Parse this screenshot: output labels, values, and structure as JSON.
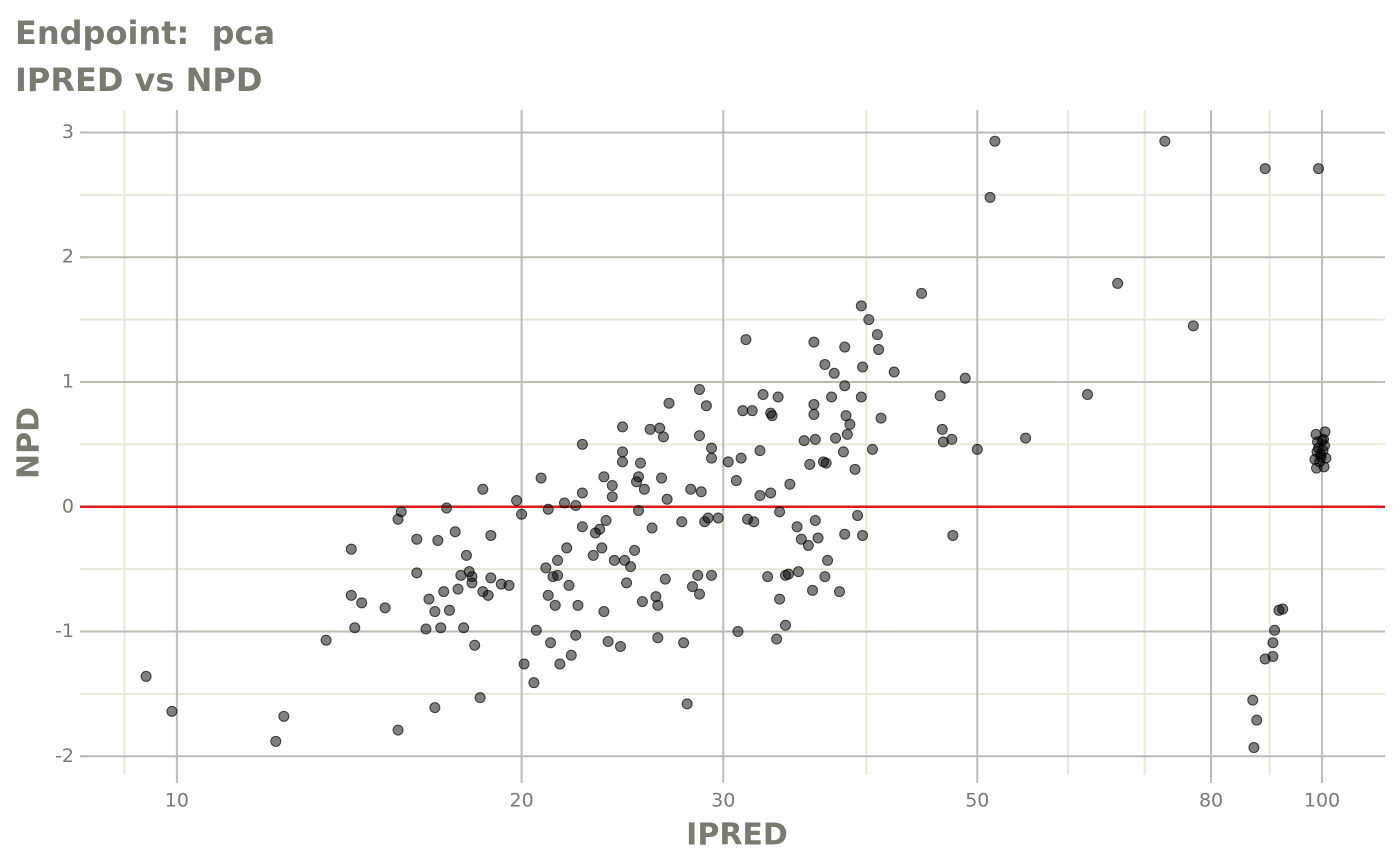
{
  "chart_data": {
    "type": "scatter",
    "title": "Endpoint:  pca",
    "subtitle": "IPRED vs NPD",
    "x_label": "IPRED",
    "y_label": "NPD",
    "x_scale": "log",
    "xlim": [
      8.23,
      113.5
    ],
    "ylim": [
      -2.15,
      3.18
    ],
    "xticks": [
      10,
      20,
      30,
      50,
      80,
      100
    ],
    "x_minor_ticks": [
      9,
      40,
      60,
      70,
      90
    ],
    "yticks": [
      -2,
      -1,
      0,
      1,
      2,
      3
    ],
    "y_minor_ticks": [
      -1.5,
      -0.5,
      0.5,
      1.5,
      2.5
    ],
    "grid": true,
    "major_grid_color": "#bcbcb2",
    "minor_grid_color": "#e6e8d8",
    "hline": 0,
    "hline_color": "#d91a1a",
    "color": "#000000",
    "opacity": 0.5,
    "x": [
      9.4,
      9.9,
      12.2,
      12.4,
      13.5,
      14.2,
      14.2,
      14.3,
      14.5,
      15.2,
      15.6,
      15.6,
      15.7,
      16.2,
      16.2,
      16.5,
      16.6,
      16.8,
      16.8,
      16.9,
      17.0,
      17.1,
      17.2,
      17.3,
      17.5,
      17.6,
      17.7,
      17.8,
      17.9,
      18.0,
      18.1,
      18.1,
      18.2,
      18.4,
      18.5,
      18.5,
      18.7,
      18.8,
      18.8,
      19.2,
      19.5,
      19.8,
      20.0,
      20.1,
      20.5,
      20.6,
      20.8,
      21.0,
      21.1,
      21.1,
      21.2,
      21.3,
      21.4,
      21.5,
      21.5,
      21.6,
      21.8,
      21.9,
      22.0,
      22.1,
      22.3,
      22.3,
      22.4,
      22.6,
      22.6,
      22.6,
      23.1,
      23.2,
      23.4,
      23.5,
      23.6,
      23.6,
      23.7,
      23.8,
      24.0,
      24.0,
      24.1,
      24.4,
      24.5,
      24.5,
      24.5,
      24.6,
      24.7,
      24.9,
      25.1,
      25.2,
      25.3,
      25.3,
      25.4,
      25.5,
      25.6,
      25.9,
      26.0,
      26.2,
      26.3,
      26.3,
      26.4,
      26.5,
      26.6,
      26.7,
      26.8,
      26.9,
      27.6,
      27.7,
      27.9,
      28.1,
      28.2,
      28.5,
      28.6,
      28.6,
      28.6,
      28.7,
      28.9,
      29.0,
      29.1,
      29.3,
      29.3,
      29.3,
      29.7,
      30.3,
      30.8,
      30.9,
      31.1,
      31.2,
      31.4,
      31.5,
      31.8,
      31.9,
      32.3,
      32.3,
      32.5,
      32.8,
      33.0,
      33.0,
      33.1,
      33.4,
      33.5,
      33.6,
      33.6,
      34.0,
      34.0,
      34.2,
      34.3,
      34.8,
      34.9,
      35.1,
      35.3,
      35.6,
      35.7,
      35.9,
      36.0,
      36.0,
      36.0,
      36.1,
      36.1,
      36.3,
      36.7,
      36.8,
      36.8,
      36.9,
      37.0,
      37.3,
      37.5,
      37.6,
      37.9,
      38.2,
      38.3,
      38.3,
      38.3,
      38.4,
      38.5,
      38.7,
      39.1,
      39.3,
      39.6,
      39.7,
      39.7,
      39.6,
      40.9,
      41.0,
      41.2,
      40.2,
      40.5,
      42.3,
      44.7,
      46.4,
      46.6,
      46.7,
      47.5,
      47.6,
      48.8,
      50.0,
      51.3,
      51.8,
      55.1,
      62.4,
      66.3,
      72.9,
      77.2,
      87.0,
      87.2,
      87.7,
      89.2,
      89.2,
      90.6,
      90.6,
      90.9,
      91.7,
      92.4,
      98.6,
      98.8,
      98.9,
      99.0,
      99.1,
      99.3,
      99.3,
      99.5,
      99.7,
      99.8,
      100.0,
      100.2,
      100.3,
      100.4,
      100.6,
      100.8,
      100.5
    ],
    "values": [
      -1.36,
      -1.64,
      -1.88,
      -1.68,
      -1.07,
      -0.34,
      -0.71,
      -0.97,
      -0.77,
      -0.81,
      -1.79,
      -0.1,
      -0.04,
      -0.26,
      -0.53,
      -0.98,
      -0.74,
      -0.84,
      -1.61,
      -0.27,
      -0.97,
      -0.68,
      -0.01,
      -0.83,
      -0.2,
      -0.66,
      -0.55,
      -0.97,
      -0.39,
      -0.52,
      -0.56,
      -0.61,
      -1.11,
      -1.53,
      0.14,
      -0.68,
      -0.71,
      -0.57,
      -0.23,
      -0.62,
      -0.63,
      0.05,
      -0.06,
      -1.26,
      -1.41,
      -0.99,
      0.23,
      -0.49,
      -0.02,
      -0.71,
      -1.09,
      -0.56,
      -0.79,
      -0.55,
      -0.43,
      -1.26,
      0.03,
      -0.33,
      -0.63,
      -1.19,
      0.01,
      -1.03,
      -0.79,
      0.5,
      0.11,
      -0.16,
      -0.39,
      -0.21,
      -0.18,
      -0.33,
      -0.84,
      0.24,
      -0.11,
      -1.08,
      0.17,
      0.08,
      -0.43,
      -1.12,
      0.64,
      0.36,
      0.44,
      -0.43,
      -0.61,
      -0.48,
      -0.35,
      0.2,
      -0.03,
      0.24,
      0.35,
      -0.76,
      0.14,
      0.62,
      -0.17,
      -0.72,
      -0.79,
      -1.05,
      0.63,
      0.23,
      0.56,
      -0.58,
      0.06,
      0.83,
      -0.12,
      -1.09,
      -1.58,
      0.14,
      -0.64,
      -0.55,
      0.94,
      0.57,
      -0.7,
      0.12,
      -0.12,
      0.81,
      -0.09,
      0.47,
      0.39,
      -0.55,
      -0.09,
      0.36,
      0.21,
      -1.0,
      0.39,
      0.77,
      1.34,
      -0.1,
      0.77,
      -0.12,
      0.09,
      0.45,
      0.9,
      -0.56,
      0.11,
      0.75,
      0.73,
      -1.06,
      0.88,
      -0.74,
      -0.04,
      -0.55,
      -0.95,
      -0.54,
      0.18,
      -0.16,
      -0.52,
      -0.26,
      0.53,
      -0.31,
      0.34,
      -0.67,
      0.74,
      0.82,
      1.32,
      0.54,
      -0.11,
      -0.25,
      0.36,
      -0.56,
      1.14,
      0.35,
      -0.43,
      0.88,
      1.07,
      0.55,
      -0.68,
      0.44,
      -0.22,
      1.28,
      0.97,
      0.73,
      0.58,
      0.66,
      0.3,
      -0.07,
      0.88,
      -0.23,
      1.12,
      1.61,
      1.38,
      1.26,
      0.71,
      1.5,
      0.46,
      1.08,
      1.71,
      0.89,
      0.62,
      0.52,
      0.54,
      -0.23,
      1.03,
      0.46,
      2.48,
      2.93,
      0.55,
      0.9,
      1.79,
      2.93,
      1.45,
      -1.55,
      -1.93,
      -1.71,
      2.71,
      -1.22,
      -1.09,
      -1.2,
      -0.99,
      -0.83,
      -0.82,
      0.38,
      0.58,
      0.31,
      0.44,
      0.52,
      2.71,
      0.47,
      0.36,
      0.42,
      0.4,
      0.53,
      0.45,
      0.54,
      0.32,
      0.6,
      0.39,
      0.49
    ]
  }
}
